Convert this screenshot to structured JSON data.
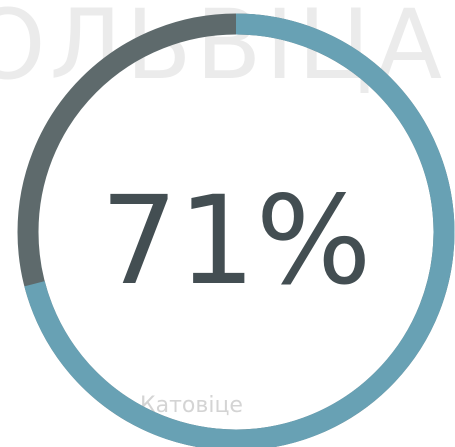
{
  "background_labels": [
    "ОЛЬВІЦА",
    "Катовіце"
  ],
  "chart_data": {
    "type": "progress-ring",
    "values": [
      71
    ],
    "value_labels": [
      "71%"
    ],
    "ylim": [
      0,
      100
    ],
    "color": "#68a1b4",
    "track_color": "#5e6a6c"
  }
}
